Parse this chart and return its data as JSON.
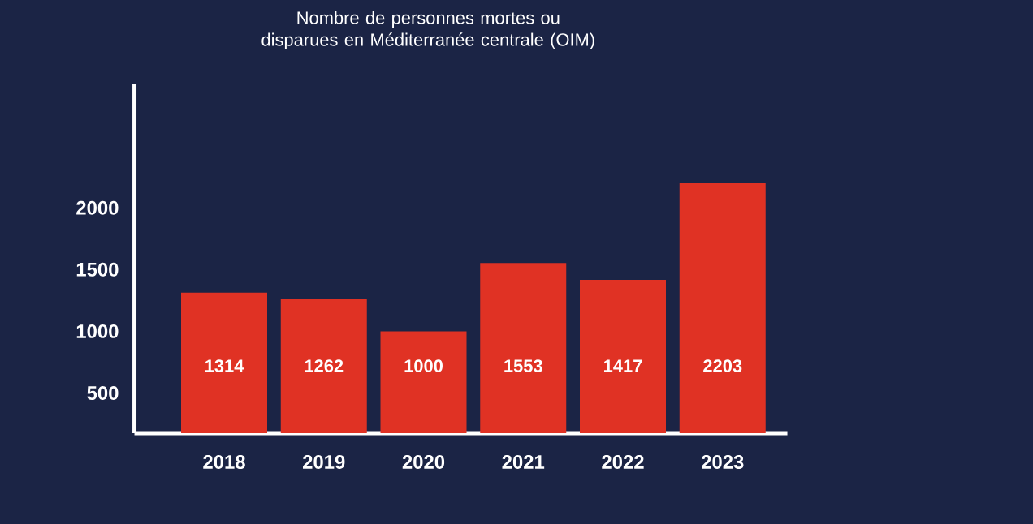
{
  "chart_data": {
    "type": "bar",
    "title": "Nombre de personnes mortes ou disparues en Méditerranée centrale (OIM)",
    "categories": [
      "2018",
      "2019",
      "2020",
      "2021",
      "2022",
      "2023"
    ],
    "values": [
      1314,
      1262,
      1000,
      1553,
      1417,
      2203
    ],
    "color": "#e03224",
    "ylim": [
      175,
      3000
    ],
    "yticks": [
      500,
      1000,
      1500,
      2000
    ],
    "data_labels": true
  }
}
